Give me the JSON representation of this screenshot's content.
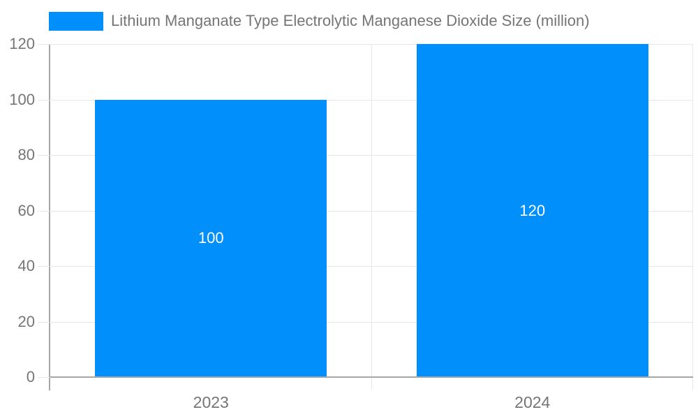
{
  "colors": {
    "bar": "#008FFB",
    "grid": "#e7e7e7",
    "axis": "#a6a6a6",
    "text": "#757575",
    "bar_label": "#ffffff",
    "background": "#ffffff"
  },
  "chart_data": {
    "type": "bar",
    "title": "",
    "xlabel": "",
    "ylabel": "",
    "categories": [
      "2023",
      "2024"
    ],
    "series": [
      {
        "name": "Lithium Manganate Type Electrolytic Manganese Dioxide Size (million)",
        "values": [
          100,
          120
        ],
        "color": "#008FFB"
      }
    ],
    "data_labels": [
      100,
      120
    ],
    "ylim": [
      0,
      120
    ],
    "yticks": [
      0,
      20,
      40,
      60,
      80,
      100,
      120
    ],
    "legend_position": "top",
    "grid": true
  }
}
